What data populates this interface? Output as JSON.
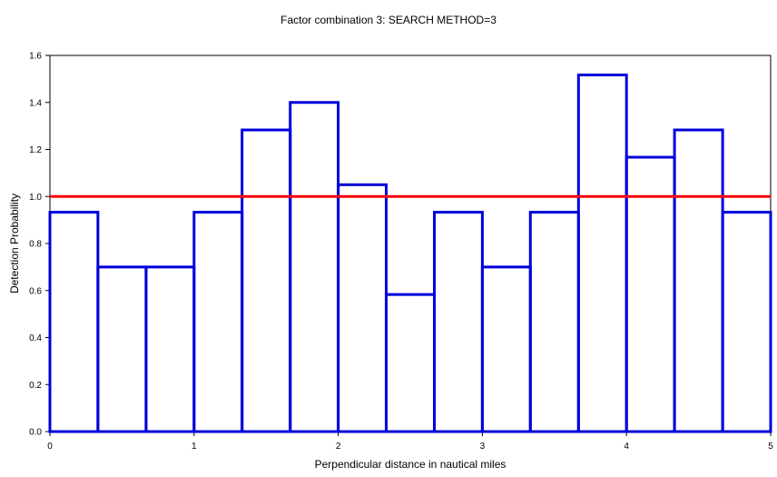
{
  "chart_data": {
    "type": "histogram",
    "title": "Factor combination 3: SEARCH METHOD=3",
    "xlabel": "Perpendicular distance in nautical miles",
    "ylabel": "Detection Probability",
    "xlim": [
      0,
      5
    ],
    "ylim": [
      0,
      1.6
    ],
    "x_ticks": [
      "0",
      "1",
      "2",
      "3",
      "4",
      "5"
    ],
    "y_ticks": [
      "0.0",
      "0.2",
      "0.4",
      "0.6",
      "0.8",
      "1.0",
      "1.2",
      "1.4",
      "1.6"
    ],
    "grid": false,
    "legend": "none",
    "bin_edges": [
      0,
      0.333,
      0.667,
      1.0,
      1.333,
      1.667,
      2.0,
      2.333,
      2.667,
      3.0,
      3.333,
      3.667,
      4.0,
      4.333,
      4.667,
      5.0
    ],
    "values": [
      0.933,
      0.7,
      0.7,
      0.933,
      1.283,
      1.4,
      1.05,
      0.583,
      0.933,
      0.7,
      0.933,
      1.517,
      1.167,
      1.283,
      0.933
    ],
    "reference_line": {
      "y": 1.0,
      "color": "#ff0000"
    },
    "bar_color": "#0000dd"
  }
}
